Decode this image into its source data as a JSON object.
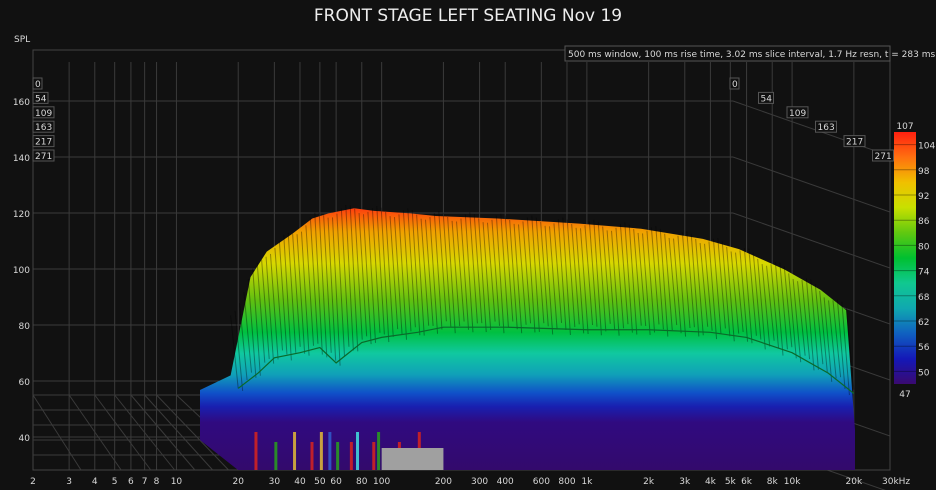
{
  "chart_data": {
    "type": "area",
    "subtype": "waterfall",
    "title": "FRONT STAGE LEFT SEATING Nov 19",
    "info": "500 ms window, 100 ms rise time, 3.02 ms slice interval, 1.7 Hz resn, t = 283 ms",
    "ylabel": "SPL",
    "x_scale": "log",
    "xlim": [
      2,
      30000
    ],
    "ylim": [
      28,
      170
    ],
    "grid": true,
    "y_ticks": [
      "40",
      "60",
      "80",
      "100",
      "120",
      "140",
      "160"
    ],
    "x_ticks": [
      "2",
      "3",
      "4",
      "5",
      "6",
      "7",
      "8",
      "10",
      "20",
      "30",
      "40",
      "50",
      "60",
      "80",
      "100",
      "200",
      "300",
      "400",
      "600",
      "800",
      "1k",
      "2k",
      "3k",
      "4k",
      "5k",
      "6k",
      "8k",
      "10k",
      "20k",
      "30kHz"
    ],
    "x_tick_values": [
      2,
      3,
      4,
      5,
      6,
      7,
      8,
      10,
      20,
      30,
      40,
      50,
      60,
      80,
      100,
      200,
      300,
      400,
      600,
      800,
      1000,
      2000,
      3000,
      4000,
      5000,
      6000,
      8000,
      10000,
      20000,
      30000
    ],
    "slice_times_ms": [
      "0",
      "54",
      "109",
      "163",
      "217",
      "271"
    ],
    "colorbar": {
      "min_label": "47",
      "max_label": "107",
      "ticks": [
        "104",
        "98",
        "92",
        "86",
        "80",
        "74",
        "68",
        "62",
        "56",
        "50"
      ],
      "colors": [
        "#ff2010",
        "#ff7010",
        "#f0b000",
        "#e8e000",
        "#a8d800",
        "#40c020",
        "#00c040",
        "#10c890",
        "#10a8b0",
        "#1070c0",
        "#1020c0",
        "#300090",
        "#3a0a70"
      ]
    },
    "envelope_freq_hz": [
      20,
      25,
      30,
      40,
      50,
      60,
      80,
      100,
      150,
      200,
      400,
      1000,
      2000,
      4000,
      6000,
      10000,
      15000,
      20000
    ],
    "envelope_peak_spl": [
      70,
      85,
      95,
      102,
      108,
      110,
      112,
      111,
      110,
      109,
      108,
      106,
      104,
      100,
      96,
      88,
      80,
      72
    ],
    "front_slice_spl": [
      60,
      66,
      72,
      74,
      76,
      70,
      78,
      80,
      82,
      84,
      84,
      83,
      83,
      82,
      80,
      74,
      66,
      58
    ]
  }
}
